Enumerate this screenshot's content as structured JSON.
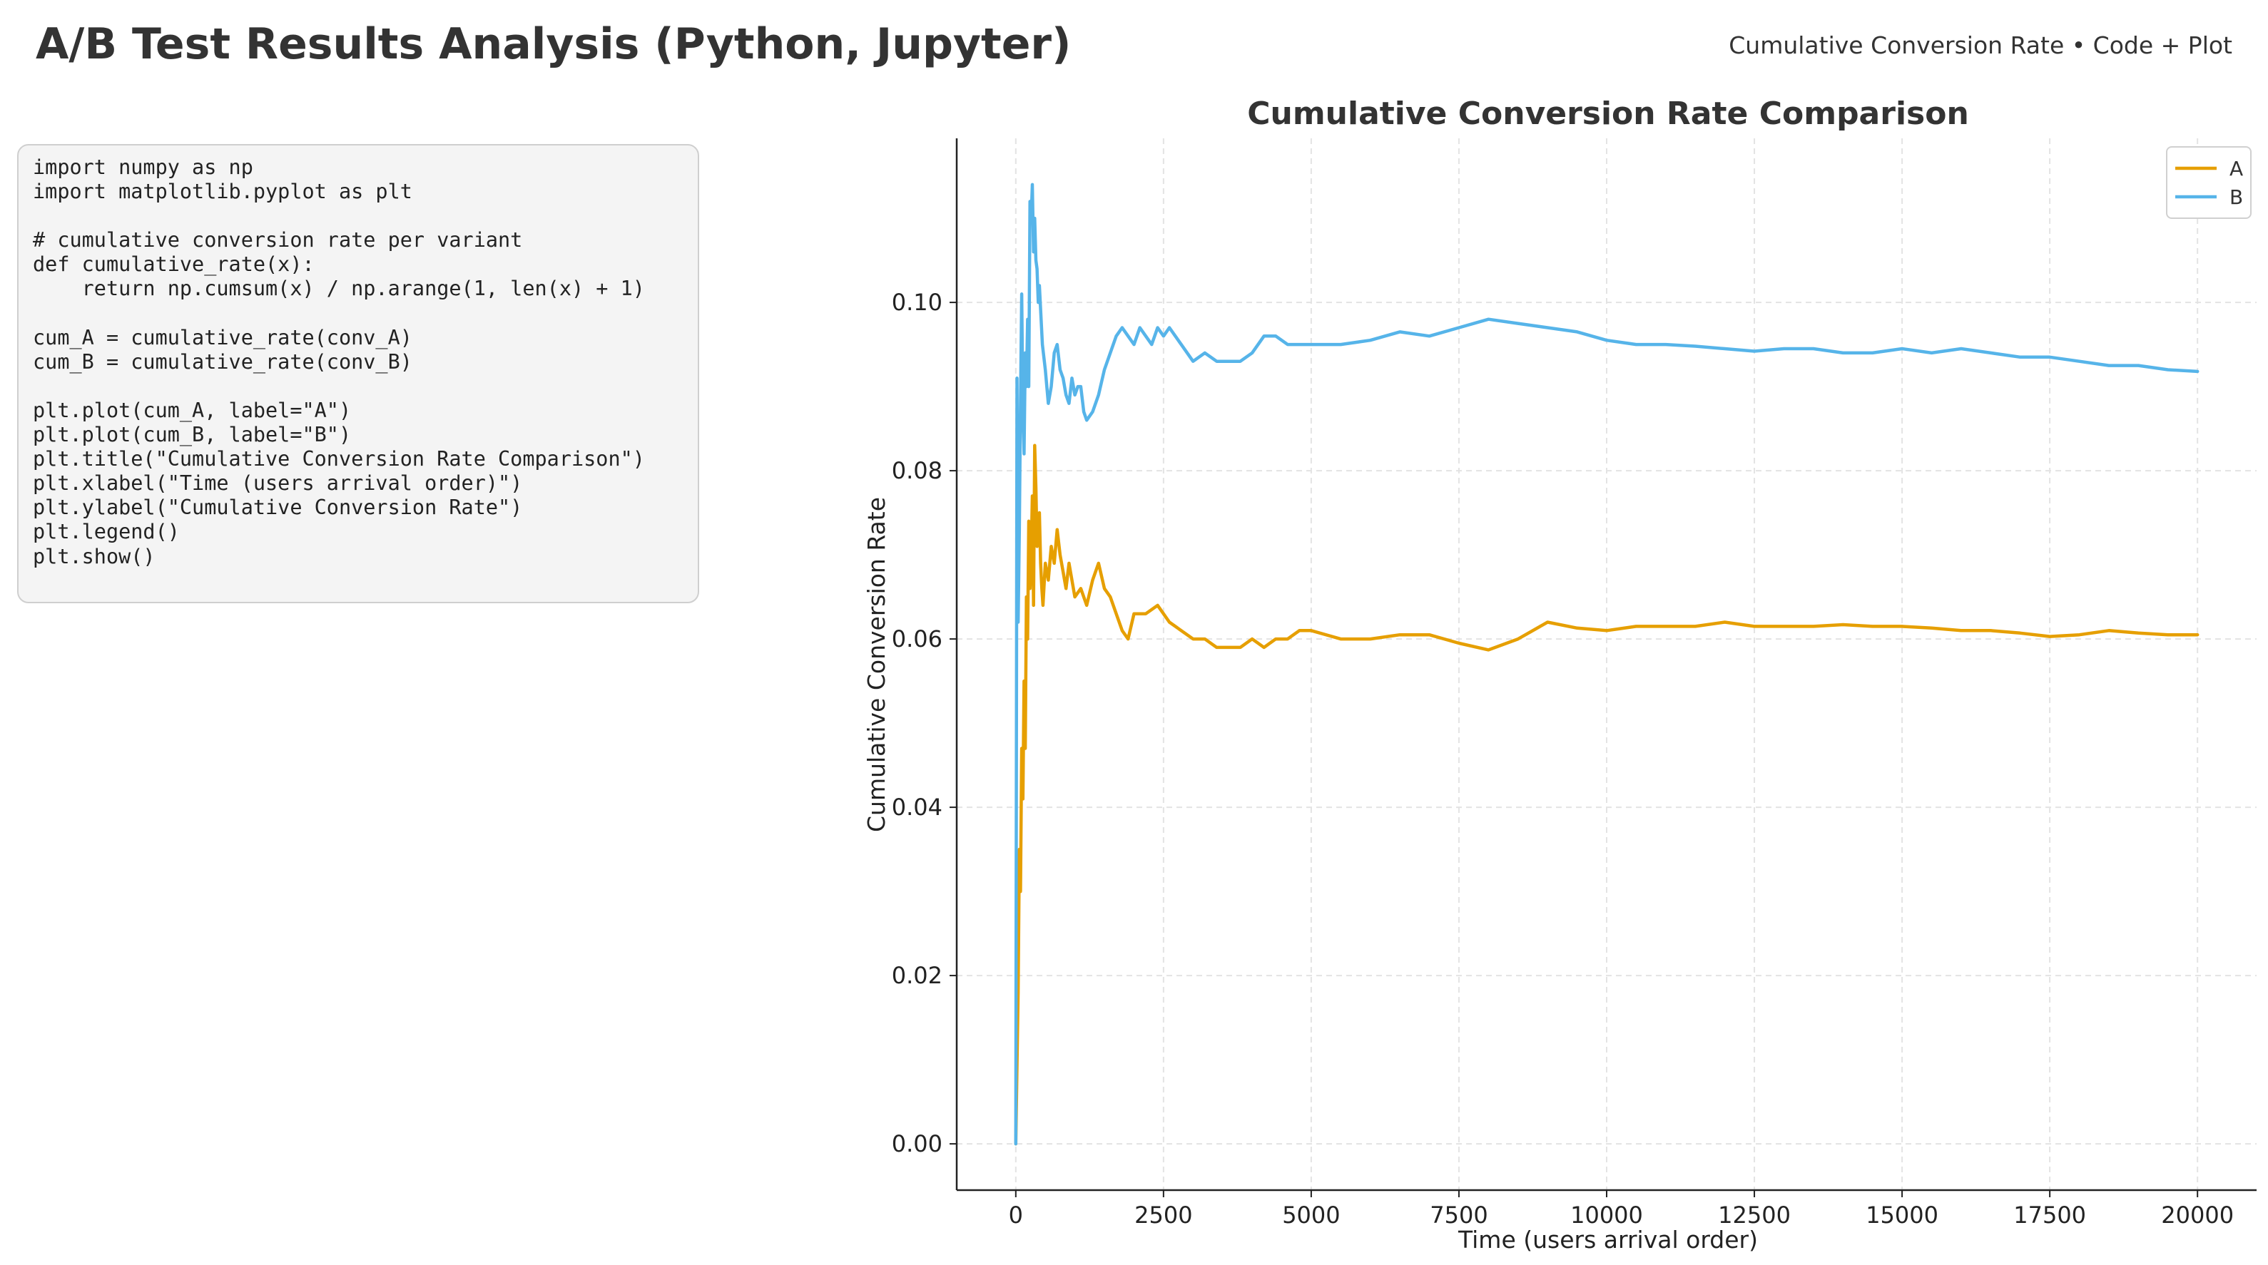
{
  "header": {
    "title": "A/B Test Results Analysis (Python, Jupyter)",
    "subtitle": "Cumulative Conversion Rate • Code + Plot"
  },
  "code": {
    "language": "python",
    "source": "import numpy as np\nimport matplotlib.pyplot as plt\n\n# cumulative conversion rate per variant\ndef cumulative_rate(x):\n    return np.cumsum(x) / np.arange(1, len(x) + 1)\n\ncum_A = cumulative_rate(conv_A)\ncum_B = cumulative_rate(conv_B)\n\nplt.plot(cum_A, label=\"A\")\nplt.plot(cum_B, label=\"B\")\nplt.title(\"Cumulative Conversion Rate Comparison\")\nplt.xlabel(\"Time (users arrival order)\")\nplt.ylabel(\"Cumulative Conversion Rate\")\nplt.legend()\nplt.show()"
  },
  "chart_data": {
    "type": "line",
    "title": "Cumulative Conversion Rate Comparison",
    "xlabel": "Time (users arrival order)",
    "ylabel": "Cumulative Conversion Rate",
    "xlim": [
      -1000,
      21000
    ],
    "ylim": [
      -0.0055,
      0.1195
    ],
    "x_ticks": [
      0,
      2500,
      5000,
      7500,
      10000,
      12500,
      15000,
      17500,
      20000
    ],
    "y_ticks": [
      0.0,
      0.02,
      0.04,
      0.06,
      0.08,
      0.1
    ],
    "y_tick_decimals": 2,
    "grid": true,
    "legend_position": "top-right",
    "series": [
      {
        "name": "A",
        "color": "#E69F00",
        "x": [
          0,
          40,
          60,
          80,
          100,
          120,
          140,
          160,
          180,
          200,
          220,
          240,
          260,
          280,
          300,
          320,
          340,
          360,
          380,
          400,
          420,
          440,
          460,
          500,
          550,
          600,
          650,
          700,
          750,
          800,
          850,
          900,
          1000,
          1100,
          1200,
          1300,
          1400,
          1500,
          1600,
          1700,
          1800,
          1900,
          2000,
          2200,
          2400,
          2600,
          2800,
          3000,
          3200,
          3400,
          3600,
          3800,
          4000,
          4200,
          4400,
          4600,
          4800,
          5000,
          5500,
          6000,
          6500,
          7000,
          7500,
          8000,
          8500,
          9000,
          9500,
          10000,
          10500,
          11000,
          11500,
          12000,
          12500,
          13000,
          13500,
          14000,
          14500,
          15000,
          15500,
          16000,
          16500,
          17000,
          17500,
          18000,
          18500,
          19000,
          19500,
          20000
        ],
        "y": [
          0.0,
          0.018,
          0.035,
          0.03,
          0.047,
          0.041,
          0.055,
          0.047,
          0.065,
          0.06,
          0.074,
          0.066,
          0.07,
          0.077,
          0.064,
          0.083,
          0.078,
          0.071,
          0.073,
          0.075,
          0.069,
          0.066,
          0.064,
          0.069,
          0.067,
          0.071,
          0.069,
          0.073,
          0.07,
          0.068,
          0.066,
          0.069,
          0.065,
          0.066,
          0.064,
          0.067,
          0.069,
          0.066,
          0.065,
          0.063,
          0.061,
          0.06,
          0.063,
          0.063,
          0.064,
          0.062,
          0.061,
          0.06,
          0.06,
          0.059,
          0.059,
          0.059,
          0.06,
          0.059,
          0.06,
          0.06,
          0.061,
          0.061,
          0.06,
          0.06,
          0.0605,
          0.0605,
          0.0595,
          0.0587,
          0.06,
          0.062,
          0.0613,
          0.061,
          0.0615,
          0.0615,
          0.0615,
          0.062,
          0.0615,
          0.0615,
          0.0615,
          0.0617,
          0.0615,
          0.0615,
          0.0613,
          0.061,
          0.061,
          0.0607,
          0.0603,
          0.0605,
          0.061,
          0.0607,
          0.0605,
          0.0605
        ]
      },
      {
        "name": "B",
        "color": "#56B4E9",
        "x": [
          0,
          20,
          40,
          60,
          80,
          100,
          120,
          140,
          160,
          180,
          200,
          220,
          240,
          260,
          280,
          300,
          320,
          340,
          360,
          380,
          400,
          450,
          500,
          550,
          600,
          650,
          700,
          750,
          800,
          850,
          900,
          950,
          1000,
          1050,
          1100,
          1150,
          1200,
          1300,
          1400,
          1500,
          1600,
          1700,
          1800,
          1900,
          2000,
          2100,
          2200,
          2300,
          2400,
          2500,
          2600,
          2800,
          3000,
          3200,
          3400,
          3600,
          3800,
          4000,
          4200,
          4400,
          4600,
          4800,
          5000,
          5500,
          6000,
          6500,
          7000,
          7500,
          8000,
          8500,
          9000,
          9500,
          10000,
          10500,
          11000,
          11500,
          12000,
          12500,
          13000,
          13500,
          14000,
          14500,
          15000,
          15500,
          16000,
          16500,
          17000,
          17500,
          18000,
          18500,
          19000,
          19500,
          20000
        ],
        "y": [
          0.0,
          0.091,
          0.062,
          0.073,
          0.088,
          0.101,
          0.087,
          0.082,
          0.094,
          0.09,
          0.098,
          0.09,
          0.112,
          0.11,
          0.114,
          0.106,
          0.11,
          0.105,
          0.104,
          0.1,
          0.102,
          0.095,
          0.092,
          0.088,
          0.09,
          0.094,
          0.095,
          0.092,
          0.091,
          0.089,
          0.088,
          0.091,
          0.089,
          0.09,
          0.09,
          0.087,
          0.086,
          0.087,
          0.089,
          0.092,
          0.094,
          0.096,
          0.097,
          0.096,
          0.095,
          0.097,
          0.096,
          0.095,
          0.097,
          0.096,
          0.097,
          0.095,
          0.093,
          0.094,
          0.093,
          0.093,
          0.093,
          0.094,
          0.096,
          0.096,
          0.095,
          0.095,
          0.095,
          0.095,
          0.0955,
          0.0965,
          0.096,
          0.097,
          0.098,
          0.0975,
          0.097,
          0.0965,
          0.0955,
          0.095,
          0.095,
          0.0948,
          0.0945,
          0.0942,
          0.0945,
          0.0945,
          0.094,
          0.094,
          0.0945,
          0.094,
          0.0945,
          0.094,
          0.0935,
          0.0935,
          0.093,
          0.0925,
          0.0925,
          0.092,
          0.0918
        ]
      }
    ]
  }
}
